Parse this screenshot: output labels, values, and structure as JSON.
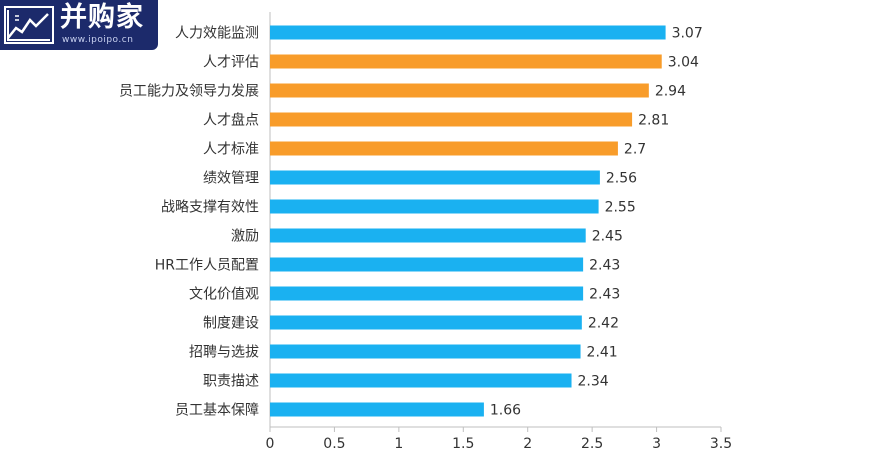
{
  "watermark": {
    "brand_text": "并购家",
    "url_text": "www.ipoipo.cn"
  },
  "colors": {
    "blue": "#1ab1f1",
    "orange": "#f89c2a",
    "axis": "#bfbfbf",
    "text": "#333333"
  },
  "chart_data": {
    "type": "bar",
    "orientation": "horizontal",
    "categories": [
      "人力效能监测",
      "人才评估",
      "员工能力及领导力发展",
      "人才盘点",
      "人才标准",
      "绩效管理",
      "战略支撑有效性",
      "激励",
      "HR工作人员配置",
      "文化价值观",
      "制度建设",
      "招聘与选拔",
      "职责描述",
      "员工基本保障"
    ],
    "values": [
      3.07,
      3.04,
      2.94,
      2.81,
      2.7,
      2.56,
      2.55,
      2.45,
      2.43,
      2.43,
      2.42,
      2.41,
      2.34,
      1.66
    ],
    "value_labels": [
      "3.07",
      "3.04",
      "2.94",
      "2.81",
      "2.7",
      "2.56",
      "2.55",
      "2.45",
      "2.43",
      "2.43",
      "2.42",
      "2.41",
      "2.34",
      "1.66"
    ],
    "bar_colors": [
      "blue",
      "orange",
      "orange",
      "orange",
      "orange",
      "blue",
      "blue",
      "blue",
      "blue",
      "blue",
      "blue",
      "blue",
      "blue",
      "blue"
    ],
    "xlim": [
      0,
      3.5
    ],
    "xticks": [
      "0",
      "0.5",
      "1",
      "1.5",
      "2",
      "2.5",
      "3",
      "3.5"
    ],
    "grid": false,
    "legend": "none"
  }
}
